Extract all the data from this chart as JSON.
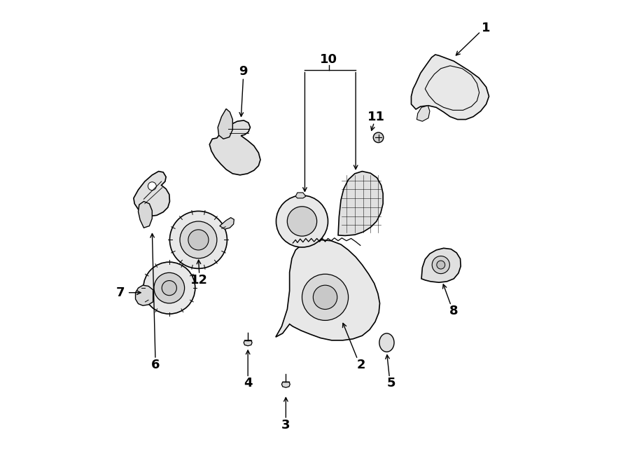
{
  "background_color": "#ffffff",
  "line_color": "#000000",
  "line_width": 1.2,
  "fig_width": 9.0,
  "fig_height": 6.61,
  "dpi": 100
}
